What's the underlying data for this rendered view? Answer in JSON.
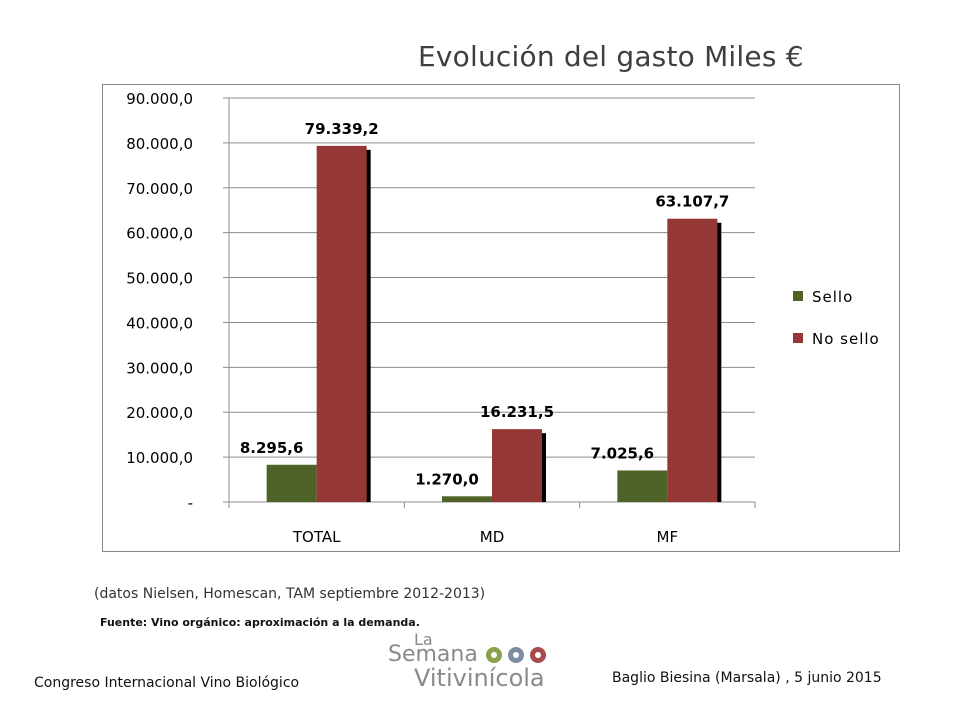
{
  "header": {
    "title": "Evolución del gasto Miles €"
  },
  "chart_data": {
    "type": "bar",
    "categories": [
      "TOTAL",
      "MD",
      "MF"
    ],
    "series": [
      {
        "name": "Sello",
        "values": [
          8295.6,
          1270.0,
          7025.6
        ],
        "labels": [
          "8.295,6",
          "1.270,0",
          "7.025,6"
        ],
        "color": "#4f6228"
      },
      {
        "name": "No sello",
        "values": [
          79339.2,
          16231.5,
          63107.7
        ],
        "labels": [
          "79.339,2",
          "16.231,5",
          "63.107,7"
        ],
        "color": "#953735"
      }
    ],
    "yticks": [
      {
        "value": 0,
        "label": "-"
      },
      {
        "value": 10000,
        "label": "10.000,0"
      },
      {
        "value": 20000,
        "label": "20.000,0"
      },
      {
        "value": 30000,
        "label": "30.000,0"
      },
      {
        "value": 40000,
        "label": "40.000,0"
      },
      {
        "value": 50000,
        "label": "50.000,0"
      },
      {
        "value": 60000,
        "label": "60.000,0"
      },
      {
        "value": 70000,
        "label": "70.000,0"
      },
      {
        "value": 80000,
        "label": "80.000,0"
      },
      {
        "value": 90000,
        "label": "90.000,0"
      }
    ],
    "ylim": [
      0,
      90000
    ],
    "grid": true,
    "legend_position": "right"
  },
  "notes": {
    "data_source": "(datos Nielsen, Homescan, TAM septiembre 2012-2013)",
    "fuente": "Fuente: Vino orgánico: aproximación a la demanda."
  },
  "footer": {
    "left": "Congreso Internacional Vino Biológico",
    "right": "Baglio Biesina (Marsala) ,  5 junio 2015"
  },
  "logo": {
    "line1": "La",
    "line2": "Semana",
    "line3": "Vitivinícola"
  }
}
